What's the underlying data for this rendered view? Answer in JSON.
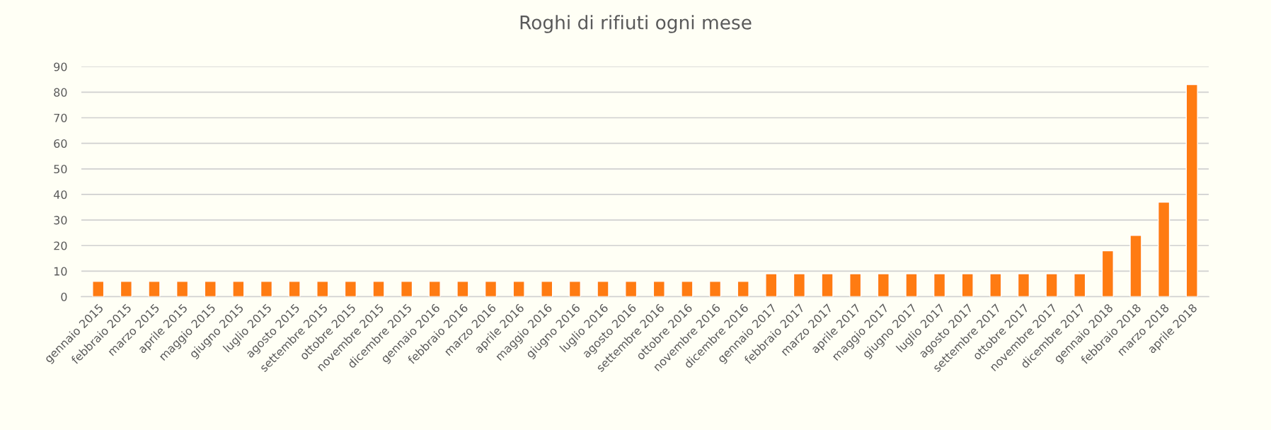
{
  "chart_data": {
    "type": "bar",
    "title": "Roghi di rifiuti ogni mese",
    "categories": [
      "gennaio 2015",
      "febbraio 2015",
      "marzo 2015",
      "aprile 2015",
      "maggio 2015",
      "giugno 2015",
      "luglio 2015",
      "agosto 2015",
      "settembre 2015",
      "ottobre 2015",
      "novembre 2015",
      "dicembre 2015",
      "gennaio 2016",
      "febbraio 2016",
      "marzo 2016",
      "aprile 2016",
      "maggio 2016",
      "giugno 2016",
      "luglio 2016",
      "agosto 2016",
      "settembre 2016",
      "ottobre 2016",
      "novembre 2016",
      "dicembre 2016",
      "gennaio 2017",
      "febbraio 2017",
      "marzo 2017",
      "aprile 2017",
      "maggio 2017",
      "giugno 2017",
      "luglio 2017",
      "agosto 2017",
      "settembre 2017",
      "ottobre 2017",
      "novembre 2017",
      "dicembre 2017",
      "gennaio 2018",
      "febbraio 2018",
      "marzo 2018",
      "aprile 2018"
    ],
    "values": [
      6,
      6,
      6,
      6,
      6,
      6,
      6,
      6,
      6,
      6,
      6,
      6,
      6,
      6,
      6,
      6,
      6,
      6,
      6,
      6,
      6,
      6,
      6,
      6,
      9,
      9,
      9,
      9,
      9,
      9,
      9,
      9,
      9,
      9,
      9,
      9,
      18,
      24,
      37,
      83
    ],
    "color": "#ff7b12",
    "ylim": [
      0,
      90
    ],
    "yticks": [
      0,
      10,
      20,
      30,
      40,
      50,
      60,
      70,
      80,
      90
    ],
    "grid": "y"
  }
}
